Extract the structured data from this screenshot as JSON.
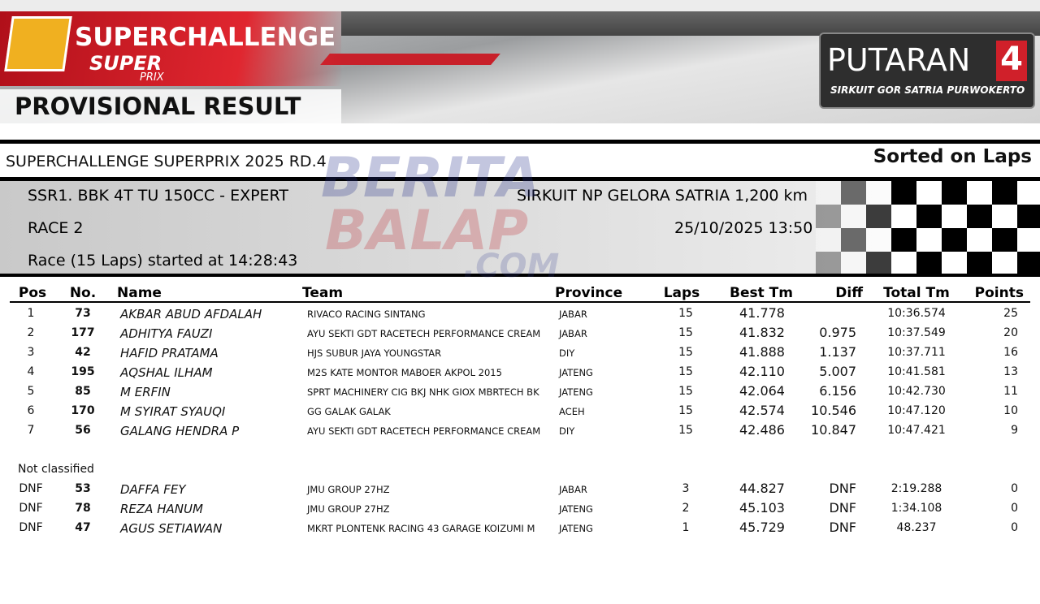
{
  "banner": {
    "logo_title": "SUPERCHALLENGE",
    "logo_super": "SUPER",
    "logo_prix": "PRIX",
    "heading": "PROVISIONAL RESULT",
    "round_label": "PUTARAN",
    "round_number": "4",
    "round_circuit": "SIRKUIT GOR SATRIA PURWOKERTO"
  },
  "event": {
    "title": "SUPERCHALLENGE SUPERPRIX 2025 RD.4",
    "sort": "Sorted on Laps"
  },
  "info": {
    "class": "SSR1. BBK 4T TU 150CC - EXPERT",
    "circuit": "SIRKUIT NP GELORA SATRIA 1,200 km",
    "race": "RACE 2",
    "datetime": "25/10/2025 13:50",
    "start": "Race (15 Laps) started at 14:28:43"
  },
  "watermark": {
    "line1": "BERITA",
    "line2": "BALAP",
    "line3": ".COM"
  },
  "table": {
    "columns": [
      "Pos",
      "No.",
      "Name",
      "Team",
      "Province",
      "Laps",
      "Best Tm",
      "Diff",
      "Total Tm",
      "Points"
    ],
    "rows": [
      {
        "pos": "1",
        "no": "73",
        "name": "AKBAR ABUD AFDALAH",
        "team": "RIVACO RACING SINTANG",
        "province": "JABAR",
        "laps": "15",
        "best": "41.778",
        "total": "10:36.574",
        "points": "25"
      },
      {
        "pos": "2",
        "no": "177",
        "name": "ADHITYA FAUZI",
        "team": "AYU SEKTI GDT RACETECH PERFORMANCE CREAM",
        "province": "JABAR",
        "laps": "15",
        "best": "41.832",
        "diff": "0.975",
        "total": "10:37.549",
        "points": "20"
      },
      {
        "pos": "3",
        "no": "42",
        "name": "HAFID PRATAMA",
        "team": "HJS SUBUR JAYA YOUNGSTAR",
        "province": "DIY",
        "laps": "15",
        "best": "41.888",
        "diff": "1.137",
        "total": "10:37.711",
        "points": "16"
      },
      {
        "pos": "4",
        "no": "195",
        "name": "AQSHAL ILHAM",
        "team": "M2S KATE MONTOR MABOER AKPOL 2015",
        "province": "JATENG",
        "laps": "15",
        "best": "42.110",
        "diff": "5.007",
        "total": "10:41.581",
        "points": "13"
      },
      {
        "pos": "5",
        "no": "85",
        "name": "M ERFIN",
        "team": "SPRT MACHINERY CIG BKJ NHK GIOX MBRTECH BK",
        "province": "JATENG",
        "laps": "15",
        "best": "42.064",
        "diff": "6.156",
        "total": "10:42.730",
        "points": "11"
      },
      {
        "pos": "6",
        "no": "170",
        "name": "M SYIRAT SYAUQI",
        "team": "GG GALAK GALAK",
        "province": "ACEH",
        "laps": "15",
        "best": "42.574",
        "diff": "10.546",
        "total": "10:47.120",
        "points": "10"
      },
      {
        "pos": "7",
        "no": "56",
        "name": "GALANG HENDRA P",
        "team": "AYU SEKTI GDT RACETECH PERFORMANCE CREAM",
        "province": "DIY",
        "laps": "15",
        "best": "42.486",
        "diff": "10.847",
        "total": "10:47.421",
        "points": "9"
      }
    ],
    "not_classified_label": "Not classified",
    "not_classified": [
      {
        "pos": "DNF",
        "no": "53",
        "name": "DAFFA FEY",
        "team": "JMU GROUP 27HZ",
        "province": "JABAR",
        "laps": "3",
        "best": "44.827",
        "diff": "DNF",
        "total": "2:19.288",
        "points": "0"
      },
      {
        "pos": "DNF",
        "no": "78",
        "name": "REZA HANUM",
        "team": "JMU GROUP 27HZ",
        "province": "JATENG",
        "laps": "2",
        "best": "45.103",
        "diff": "DNF",
        "total": "1:34.108",
        "points": "0"
      },
      {
        "pos": "DNF",
        "no": "47",
        "name": "AGUS SETIAWAN",
        "team": "MKRT PLONTENK RACING 43 GARAGE KOIZUMI M",
        "province": "JATENG",
        "laps": "1",
        "best": "45.729",
        "diff": "DNF",
        "total": "48.237",
        "points": "0"
      }
    ]
  }
}
